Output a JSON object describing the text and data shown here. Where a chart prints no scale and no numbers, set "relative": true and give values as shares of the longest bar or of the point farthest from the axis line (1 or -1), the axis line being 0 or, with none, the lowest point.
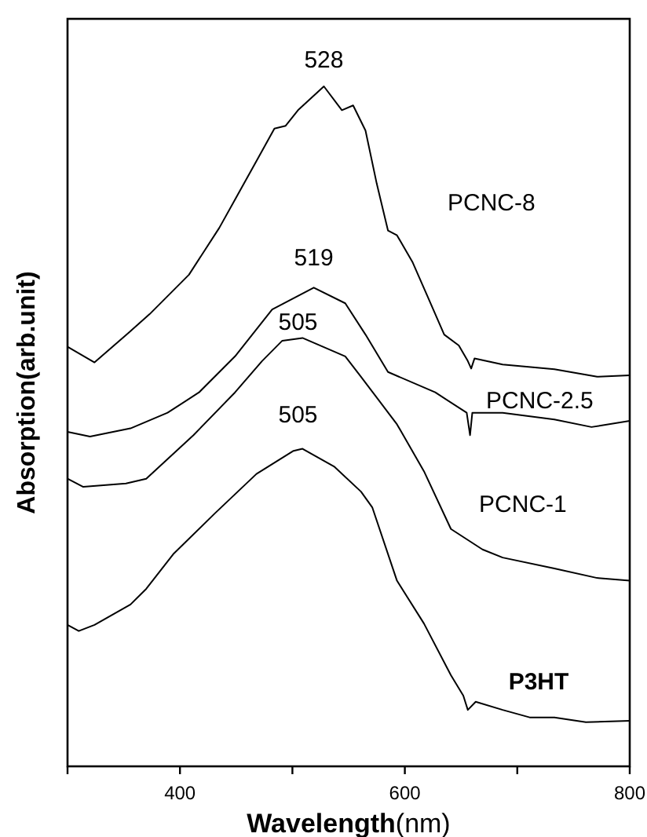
{
  "chart_data": {
    "type": "line",
    "xlabel": "Wavelength(nm)",
    "ylabel": "Absorption(arb.unit)",
    "relative": true,
    "xlim": [
      300,
      800
    ],
    "xticks": [
      {
        "value": 300,
        "label": null
      },
      400,
      {
        "value": 500,
        "label": null
      },
      600,
      {
        "value": 700,
        "label": null
      },
      800
    ],
    "grid": false,
    "legend": false,
    "marker": "none",
    "line_style": "solid",
    "series": [
      {
        "name": "PCNC-8",
        "color": "#000000",
        "x": [
          300,
          324,
          354,
          373,
          408,
          435,
          470,
          484,
          494,
          505,
          528,
          544,
          554,
          565,
          575,
          585,
          593,
          607,
          621,
          635,
          648,
          656,
          659,
          662,
          687,
          733,
          771,
          800
        ],
        "values": [
          0.617,
          0.594,
          0.637,
          0.665,
          0.723,
          0.792,
          0.896,
          0.938,
          0.942,
          0.965,
          1.0,
          0.965,
          0.972,
          0.935,
          0.857,
          0.788,
          0.781,
          0.741,
          0.688,
          0.635,
          0.619,
          0.596,
          0.585,
          0.6,
          0.591,
          0.584,
          0.573,
          0.575
        ]
      },
      {
        "name": "PCNC-2.5",
        "color": "#000000",
        "x": [
          300,
          320,
          356,
          389,
          417,
          449,
          482,
          519,
          547,
          565,
          585,
          627,
          655,
          658,
          660,
          687,
          733,
          766,
          800
        ],
        "values": [
          0.492,
          0.485,
          0.497,
          0.52,
          0.55,
          0.603,
          0.672,
          0.704,
          0.681,
          0.635,
          0.58,
          0.55,
          0.52,
          0.487,
          0.52,
          0.52,
          0.51,
          0.499,
          0.508
        ]
      },
      {
        "name": "PCNC-1",
        "color": "#000000",
        "x": [
          300,
          314,
          352,
          370,
          412,
          449,
          473,
          491,
          509,
          547,
          561,
          593,
          617,
          641,
          669,
          687,
          733,
          771,
          800
        ],
        "values": [
          0.423,
          0.411,
          0.416,
          0.423,
          0.487,
          0.55,
          0.596,
          0.626,
          0.63,
          0.603,
          0.573,
          0.503,
          0.434,
          0.349,
          0.319,
          0.307,
          0.291,
          0.277,
          0.273
        ]
      },
      {
        "name": "P3HT",
        "color": "#000000",
        "x": [
          300,
          310,
          324,
          356,
          370,
          394,
          431,
          468,
          501,
          509,
          537,
          561,
          571,
          593,
          617,
          641,
          652,
          656,
          663,
          687,
          711,
          733,
          761,
          800
        ],
        "values": [
          0.208,
          0.199,
          0.208,
          0.238,
          0.261,
          0.312,
          0.372,
          0.43,
          0.464,
          0.467,
          0.441,
          0.404,
          0.381,
          0.273,
          0.21,
          0.134,
          0.104,
          0.083,
          0.095,
          0.083,
          0.072,
          0.072,
          0.065,
          0.067
        ]
      }
    ],
    "annotations": [
      {
        "text": "528",
        "x": 528,
        "y": 1.0
      },
      {
        "text": "519",
        "x": 519,
        "y": 0.704
      },
      {
        "text": "505",
        "x": 505,
        "y": 0.63
      },
      {
        "text": "505",
        "x": 505,
        "y": 0.467
      }
    ]
  }
}
